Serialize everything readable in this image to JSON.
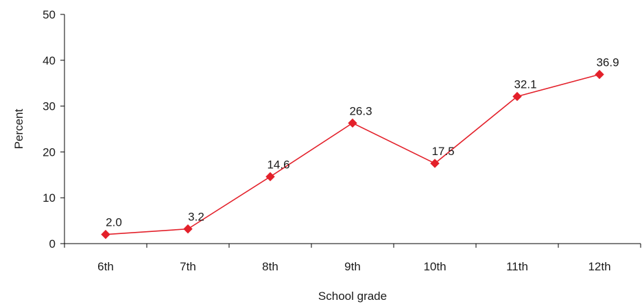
{
  "chart_data": {
    "type": "line",
    "categories": [
      "6th",
      "7th",
      "8th",
      "9th",
      "10th",
      "11th",
      "12th"
    ],
    "series": [
      {
        "values": [
          2.0,
          3.2,
          14.6,
          26.3,
          17.5,
          32.1,
          36.9
        ]
      }
    ],
    "data_labels": [
      "2.0",
      "3.2",
      "14.6",
      "26.3",
      "17.5",
      "32.1",
      "36.9"
    ],
    "xlabel": "School grade",
    "ylabel": "Percent",
    "ylim": [
      0,
      50
    ],
    "yticks": [
      0,
      10,
      20,
      30,
      40,
      50
    ],
    "grid": false,
    "legend": "none",
    "colors": {
      "series": "#e3202a",
      "axis": "#000000"
    }
  }
}
